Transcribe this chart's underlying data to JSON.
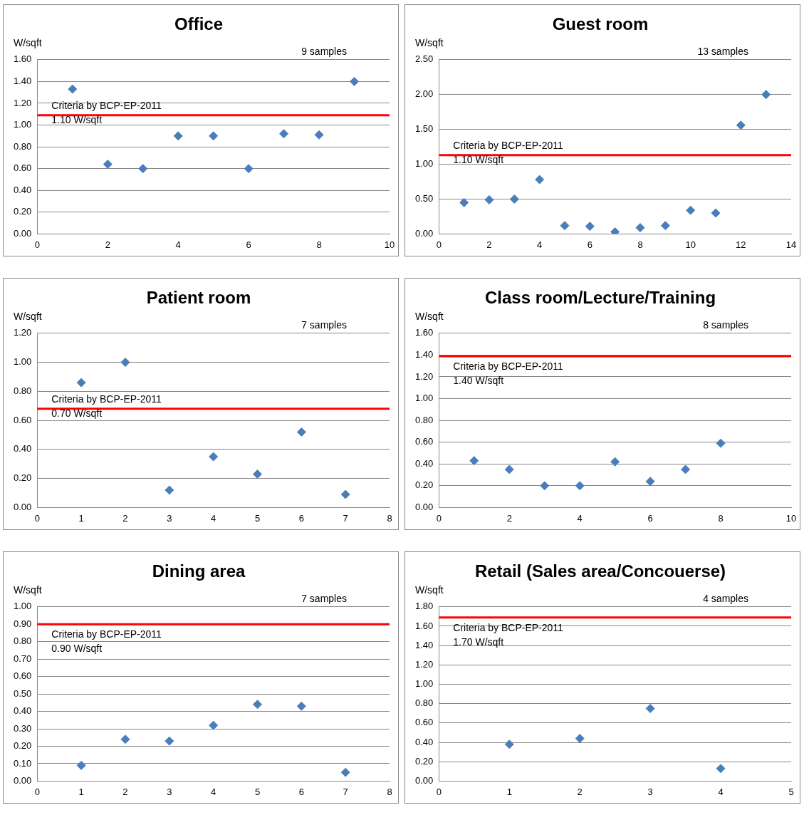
{
  "chart_data": [
    {
      "type": "scatter",
      "title": "Office",
      "ylabel": "W/sqft",
      "marker": "diamond",
      "grid": "y",
      "color": "#4a7ebb",
      "x": [
        1,
        2,
        3,
        4,
        5,
        6,
        7,
        8,
        9
      ],
      "values": [
        1.33,
        0.64,
        0.6,
        0.9,
        0.9,
        0.6,
        0.92,
        0.91,
        1.4
      ],
      "xlim": [
        0,
        10
      ],
      "xticks": [
        0,
        2,
        4,
        6,
        8,
        10
      ],
      "ylim": [
        0,
        1.6
      ],
      "yticks": [
        {
          "value": 0,
          "label": "0.00"
        },
        {
          "value": 0.2,
          "label": "0.20"
        },
        {
          "value": 0.4,
          "label": "0.40"
        },
        {
          "value": 0.6,
          "label": "0.60"
        },
        {
          "value": 0.8,
          "label": "0.80"
        },
        {
          "value": 1,
          "label": "1.00"
        },
        {
          "value": 1.2,
          "label": "1.20"
        },
        {
          "value": 1.4,
          "label": "1.40"
        },
        {
          "value": 1.6,
          "label": "1.60"
        }
      ],
      "ref_lines": [
        {
          "axis": "y",
          "value": 1.09,
          "color": "#ff0000",
          "label": "Criteria by BCP-EP-2011\n1.10 W/sqft"
        }
      ],
      "annotations": [
        "9 samples"
      ]
    },
    {
      "type": "scatter",
      "title": "Guest room",
      "ylabel": "W/sqft",
      "marker": "diamond",
      "grid": "y",
      "color": "#4a7ebb",
      "x": [
        1,
        2,
        3,
        4,
        5,
        6,
        7,
        8,
        9,
        10,
        11,
        12,
        13
      ],
      "values": [
        0.45,
        0.49,
        0.5,
        0.78,
        0.12,
        0.11,
        0.03,
        0.09,
        0.12,
        0.34,
        0.3,
        1.56,
        2.0
      ],
      "xlim": [
        0,
        14
      ],
      "xticks": [
        0,
        2,
        4,
        6,
        8,
        10,
        12,
        14
      ],
      "ylim": [
        0,
        2.5
      ],
      "yticks": [
        {
          "value": 0,
          "label": "0.00"
        },
        {
          "value": 0.5,
          "label": "0.50"
        },
        {
          "value": 1,
          "label": "1.00"
        },
        {
          "value": 1.5,
          "label": "1.50"
        },
        {
          "value": 2,
          "label": "2.00"
        },
        {
          "value": 2.5,
          "label": "2.50"
        }
      ],
      "ref_lines": [
        {
          "axis": "y",
          "value": 1.13,
          "color": "#ff0000",
          "label": "Criteria by BCP-EP-2011\n1.10 W/sqft"
        }
      ],
      "annotations": [
        "13 samples"
      ]
    },
    {
      "type": "scatter",
      "title": "Patient room",
      "ylabel": "W/sqft",
      "marker": "diamond",
      "grid": "y",
      "color": "#4a7ebb",
      "x": [
        1,
        2,
        3,
        4,
        5,
        6,
        7
      ],
      "values": [
        0.86,
        1.0,
        0.12,
        0.35,
        0.23,
        0.52,
        0.09
      ],
      "xlim": [
        0,
        8
      ],
      "xticks": [
        0,
        1,
        2,
        3,
        4,
        5,
        6,
        7,
        8
      ],
      "ylim": [
        0,
        1.2
      ],
      "yticks": [
        {
          "value": 0,
          "label": "0.00"
        },
        {
          "value": 0.2,
          "label": "0.20"
        },
        {
          "value": 0.4,
          "label": "0.40"
        },
        {
          "value": 0.6,
          "label": "0.60"
        },
        {
          "value": 0.8,
          "label": "0.80"
        },
        {
          "value": 1,
          "label": "1.00"
        },
        {
          "value": 1.2,
          "label": "1.20"
        }
      ],
      "ref_lines": [
        {
          "axis": "y",
          "value": 0.68,
          "color": "#ff0000",
          "label": "Criteria by BCP-EP-2011\n0.70 W/sqft"
        }
      ],
      "annotations": [
        "7 samples"
      ]
    },
    {
      "type": "scatter",
      "title": "Class room/Lecture/Training",
      "ylabel": "W/sqft",
      "marker": "diamond",
      "grid": "y",
      "color": "#4a7ebb",
      "x": [
        1,
        2,
        3,
        4,
        5,
        6,
        7,
        8
      ],
      "values": [
        0.43,
        0.35,
        0.2,
        0.2,
        0.42,
        0.24,
        0.35,
        0.59
      ],
      "xlim": [
        0,
        10
      ],
      "xticks": [
        0,
        2,
        4,
        6,
        8,
        10
      ],
      "ylim": [
        0,
        1.6
      ],
      "yticks": [
        {
          "value": 0,
          "label": "0.00"
        },
        {
          "value": 0.2,
          "label": "0.20"
        },
        {
          "value": 0.4,
          "label": "0.40"
        },
        {
          "value": 0.6,
          "label": "0.60"
        },
        {
          "value": 0.8,
          "label": "0.80"
        },
        {
          "value": 1,
          "label": "1.00"
        },
        {
          "value": 1.2,
          "label": "1.20"
        },
        {
          "value": 1.4,
          "label": "1.40"
        },
        {
          "value": 1.6,
          "label": "1.60"
        }
      ],
      "ref_lines": [
        {
          "axis": "y",
          "value": 1.39,
          "color": "#ff0000",
          "label": "Criteria by BCP-EP-2011\n1.40 W/sqft"
        }
      ],
      "annotations": [
        "8 samples"
      ]
    },
    {
      "type": "scatter",
      "title": "Dining area",
      "ylabel": "W/sqft",
      "marker": "diamond",
      "grid": "y",
      "color": "#4a7ebb",
      "x": [
        1,
        2,
        3,
        4,
        5,
        6,
        7
      ],
      "values": [
        0.09,
        0.24,
        0.23,
        0.32,
        0.44,
        0.43,
        0.05
      ],
      "xlim": [
        0,
        8
      ],
      "xticks": [
        0,
        1,
        2,
        3,
        4,
        5,
        6,
        7,
        8
      ],
      "ylim": [
        0,
        1
      ],
      "yticks": [
        {
          "value": 0,
          "label": "0.00"
        },
        {
          "value": 0.1,
          "label": "0.10"
        },
        {
          "value": 0.2,
          "label": "0.20"
        },
        {
          "value": 0.3,
          "label": "0.30"
        },
        {
          "value": 0.4,
          "label": "0.40"
        },
        {
          "value": 0.5,
          "label": "0.50"
        },
        {
          "value": 0.6,
          "label": "0.60"
        },
        {
          "value": 0.7,
          "label": "0.70"
        },
        {
          "value": 0.8,
          "label": "0.80"
        },
        {
          "value": 0.9,
          "label": "0.90"
        },
        {
          "value": 1,
          "label": "1.00"
        }
      ],
      "ref_lines": [
        {
          "axis": "y",
          "value": 0.9,
          "color": "#ff0000",
          "label": "Criteria by BCP-EP-2011\n0.90 W/sqft"
        }
      ],
      "annotations": [
        "7 samples"
      ]
    },
    {
      "type": "scatter",
      "title": "Retail (Sales area/Concouerse)",
      "ylabel": "W/sqft",
      "marker": "diamond",
      "grid": "y",
      "color": "#4a7ebb",
      "x": [
        1,
        2,
        3,
        4
      ],
      "values": [
        0.38,
        0.44,
        0.75,
        0.13
      ],
      "xlim": [
        0,
        5
      ],
      "xticks": [
        0,
        1,
        2,
        3,
        4,
        5
      ],
      "ylim": [
        0,
        1.8
      ],
      "yticks": [
        {
          "value": 0,
          "label": "0.00"
        },
        {
          "value": 0.2,
          "label": "0.20"
        },
        {
          "value": 0.4,
          "label": "0.40"
        },
        {
          "value": 0.6,
          "label": "0.60"
        },
        {
          "value": 0.8,
          "label": "0.80"
        },
        {
          "value": 1,
          "label": "1.00"
        },
        {
          "value": 1.2,
          "label": "1.20"
        },
        {
          "value": 1.4,
          "label": "1.40"
        },
        {
          "value": 1.6,
          "label": "1.60"
        },
        {
          "value": 1.8,
          "label": "1.80"
        }
      ],
      "ref_lines": [
        {
          "axis": "y",
          "value": 1.69,
          "color": "#ff0000",
          "label": "Criteria by BCP-EP-2011\n1.70 W/sqft"
        }
      ],
      "annotations": [
        "4 samples"
      ]
    }
  ]
}
